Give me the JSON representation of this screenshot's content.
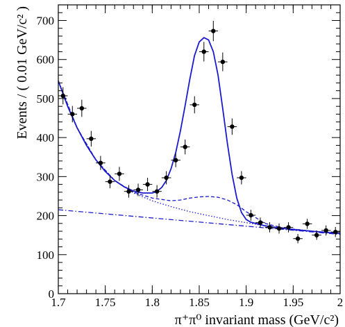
{
  "chart_data": {
    "type": "scatter",
    "xlabel": "π⁺π⁰ invariant mass (GeV/c²)",
    "ylabel": "Events / ( 0.01 GeV/c² )",
    "xlim": [
      1.7,
      2.0
    ],
    "ylim": [
      0,
      740
    ],
    "xticks": [
      "1.7",
      "1.75",
      "1.8",
      "1.85",
      "1.9",
      "1.95",
      "2"
    ],
    "xtick_values": [
      1.7,
      1.75,
      1.8,
      1.85,
      1.9,
      1.95,
      2.0
    ],
    "yticks": [
      "0",
      "100",
      "200",
      "300",
      "400",
      "500",
      "600",
      "700"
    ],
    "ytick_values": [
      0,
      100,
      200,
      300,
      400,
      500,
      600,
      700
    ],
    "grid": false,
    "colors": {
      "data": "#000000",
      "fit": "#1a1acc"
    },
    "data_points": {
      "x": [
        1.705,
        1.715,
        1.725,
        1.735,
        1.745,
        1.755,
        1.765,
        1.775,
        1.785,
        1.795,
        1.805,
        1.815,
        1.825,
        1.835,
        1.845,
        1.855,
        1.865,
        1.875,
        1.885,
        1.895,
        1.905,
        1.915,
        1.925,
        1.935,
        1.945,
        1.955,
        1.965,
        1.975,
        1.985,
        1.995
      ],
      "y": [
        507,
        460,
        475,
        397,
        335,
        287,
        307,
        262,
        266,
        280,
        262,
        297,
        342,
        376,
        484,
        620,
        673,
        594,
        428,
        297,
        201,
        182,
        170,
        167,
        170,
        141,
        179,
        150,
        162,
        158
      ],
      "yerr": [
        22,
        21,
        22,
        20,
        18,
        17,
        18,
        16,
        16,
        17,
        16,
        17,
        18,
        19,
        22,
        25,
        26,
        24,
        21,
        17,
        14,
        13,
        13,
        13,
        13,
        12,
        13,
        12,
        13,
        13
      ],
      "xerr": 0.005
    },
    "series": [
      {
        "style": "solid",
        "x": [
          1.7,
          1.71,
          1.72,
          1.73,
          1.74,
          1.75,
          1.76,
          1.77,
          1.78,
          1.79,
          1.8,
          1.805,
          1.81,
          1.815,
          1.82,
          1.825,
          1.83,
          1.835,
          1.84,
          1.845,
          1.85,
          1.855,
          1.86,
          1.865,
          1.87,
          1.875,
          1.88,
          1.885,
          1.89,
          1.895,
          1.9,
          1.905,
          1.91,
          1.92,
          1.93,
          1.94,
          1.95,
          1.96,
          1.97,
          1.98,
          1.99,
          2.0
        ],
        "y": [
          545,
          480,
          425,
          380,
          343,
          313,
          290,
          274,
          263,
          258,
          258,
          262,
          272,
          290,
          320,
          362,
          417,
          482,
          550,
          610,
          645,
          656,
          650,
          620,
          560,
          475,
          385,
          305,
          245,
          208,
          190,
          183,
          180,
          174,
          170,
          167,
          164,
          162,
          160,
          158,
          156,
          154
        ]
      },
      {
        "style": "dashed",
        "x": [
          1.7,
          1.72,
          1.74,
          1.76,
          1.78,
          1.8,
          1.82,
          1.83,
          1.84,
          1.85,
          1.86,
          1.87,
          1.88,
          1.89,
          1.9,
          1.92,
          1.94,
          1.96,
          1.98,
          2.0
        ],
        "y": [
          545,
          425,
          343,
          290,
          260,
          245,
          238,
          240,
          245,
          248,
          249,
          247,
          240,
          228,
          210,
          180,
          168,
          163,
          158,
          154
        ]
      },
      {
        "style": "dotted",
        "x": [
          1.7,
          1.72,
          1.74,
          1.76,
          1.78,
          1.8,
          1.82,
          1.84,
          1.86,
          1.88,
          1.9,
          1.92,
          1.94,
          1.96,
          1.98,
          2.0
        ],
        "y": [
          545,
          425,
          343,
          290,
          258,
          238,
          223,
          210,
          200,
          190,
          182,
          174,
          168,
          163,
          158,
          154
        ]
      },
      {
        "style": "dashdot",
        "x": [
          1.7,
          2.0
        ],
        "y": [
          215,
          152
        ]
      }
    ]
  }
}
